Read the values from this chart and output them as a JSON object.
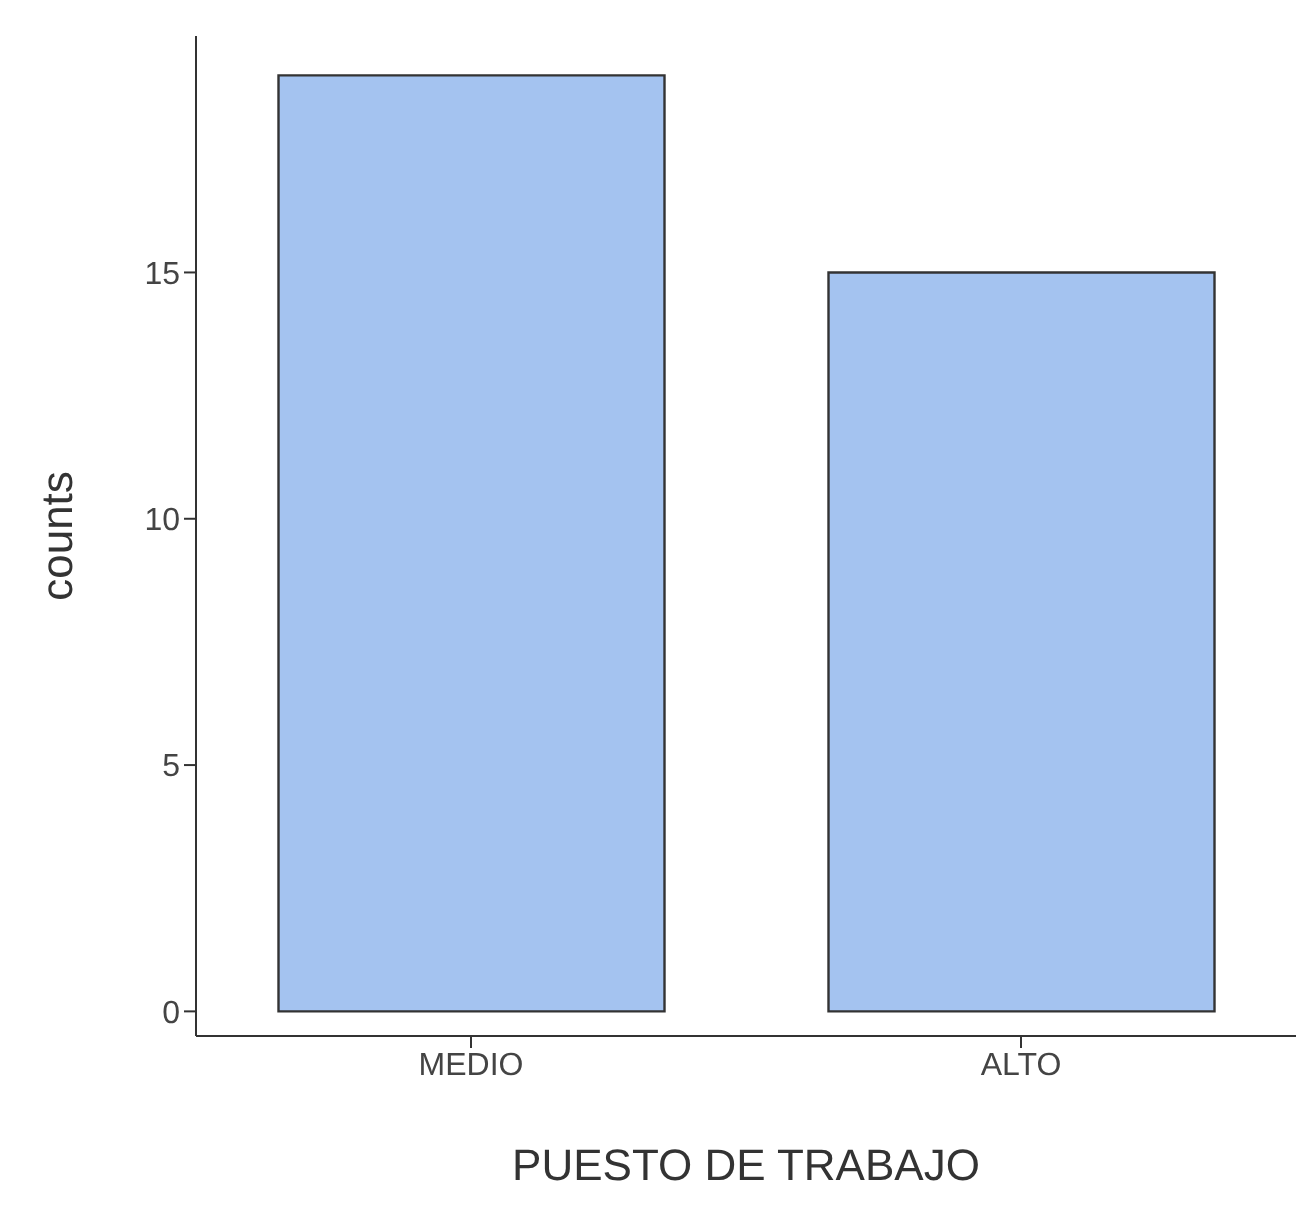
{
  "chart_data": {
    "type": "bar",
    "xlabel": "PUESTO DE TRABAJO",
    "ylabel": "counts",
    "categories": [
      "MEDIO",
      "ALTO"
    ],
    "values": [
      19,
      15
    ],
    "color": "#a4c3f0",
    "ylim": [
      -0.5,
      19.8
    ],
    "yticks": [
      0,
      5,
      10,
      15
    ],
    "grid": false
  }
}
